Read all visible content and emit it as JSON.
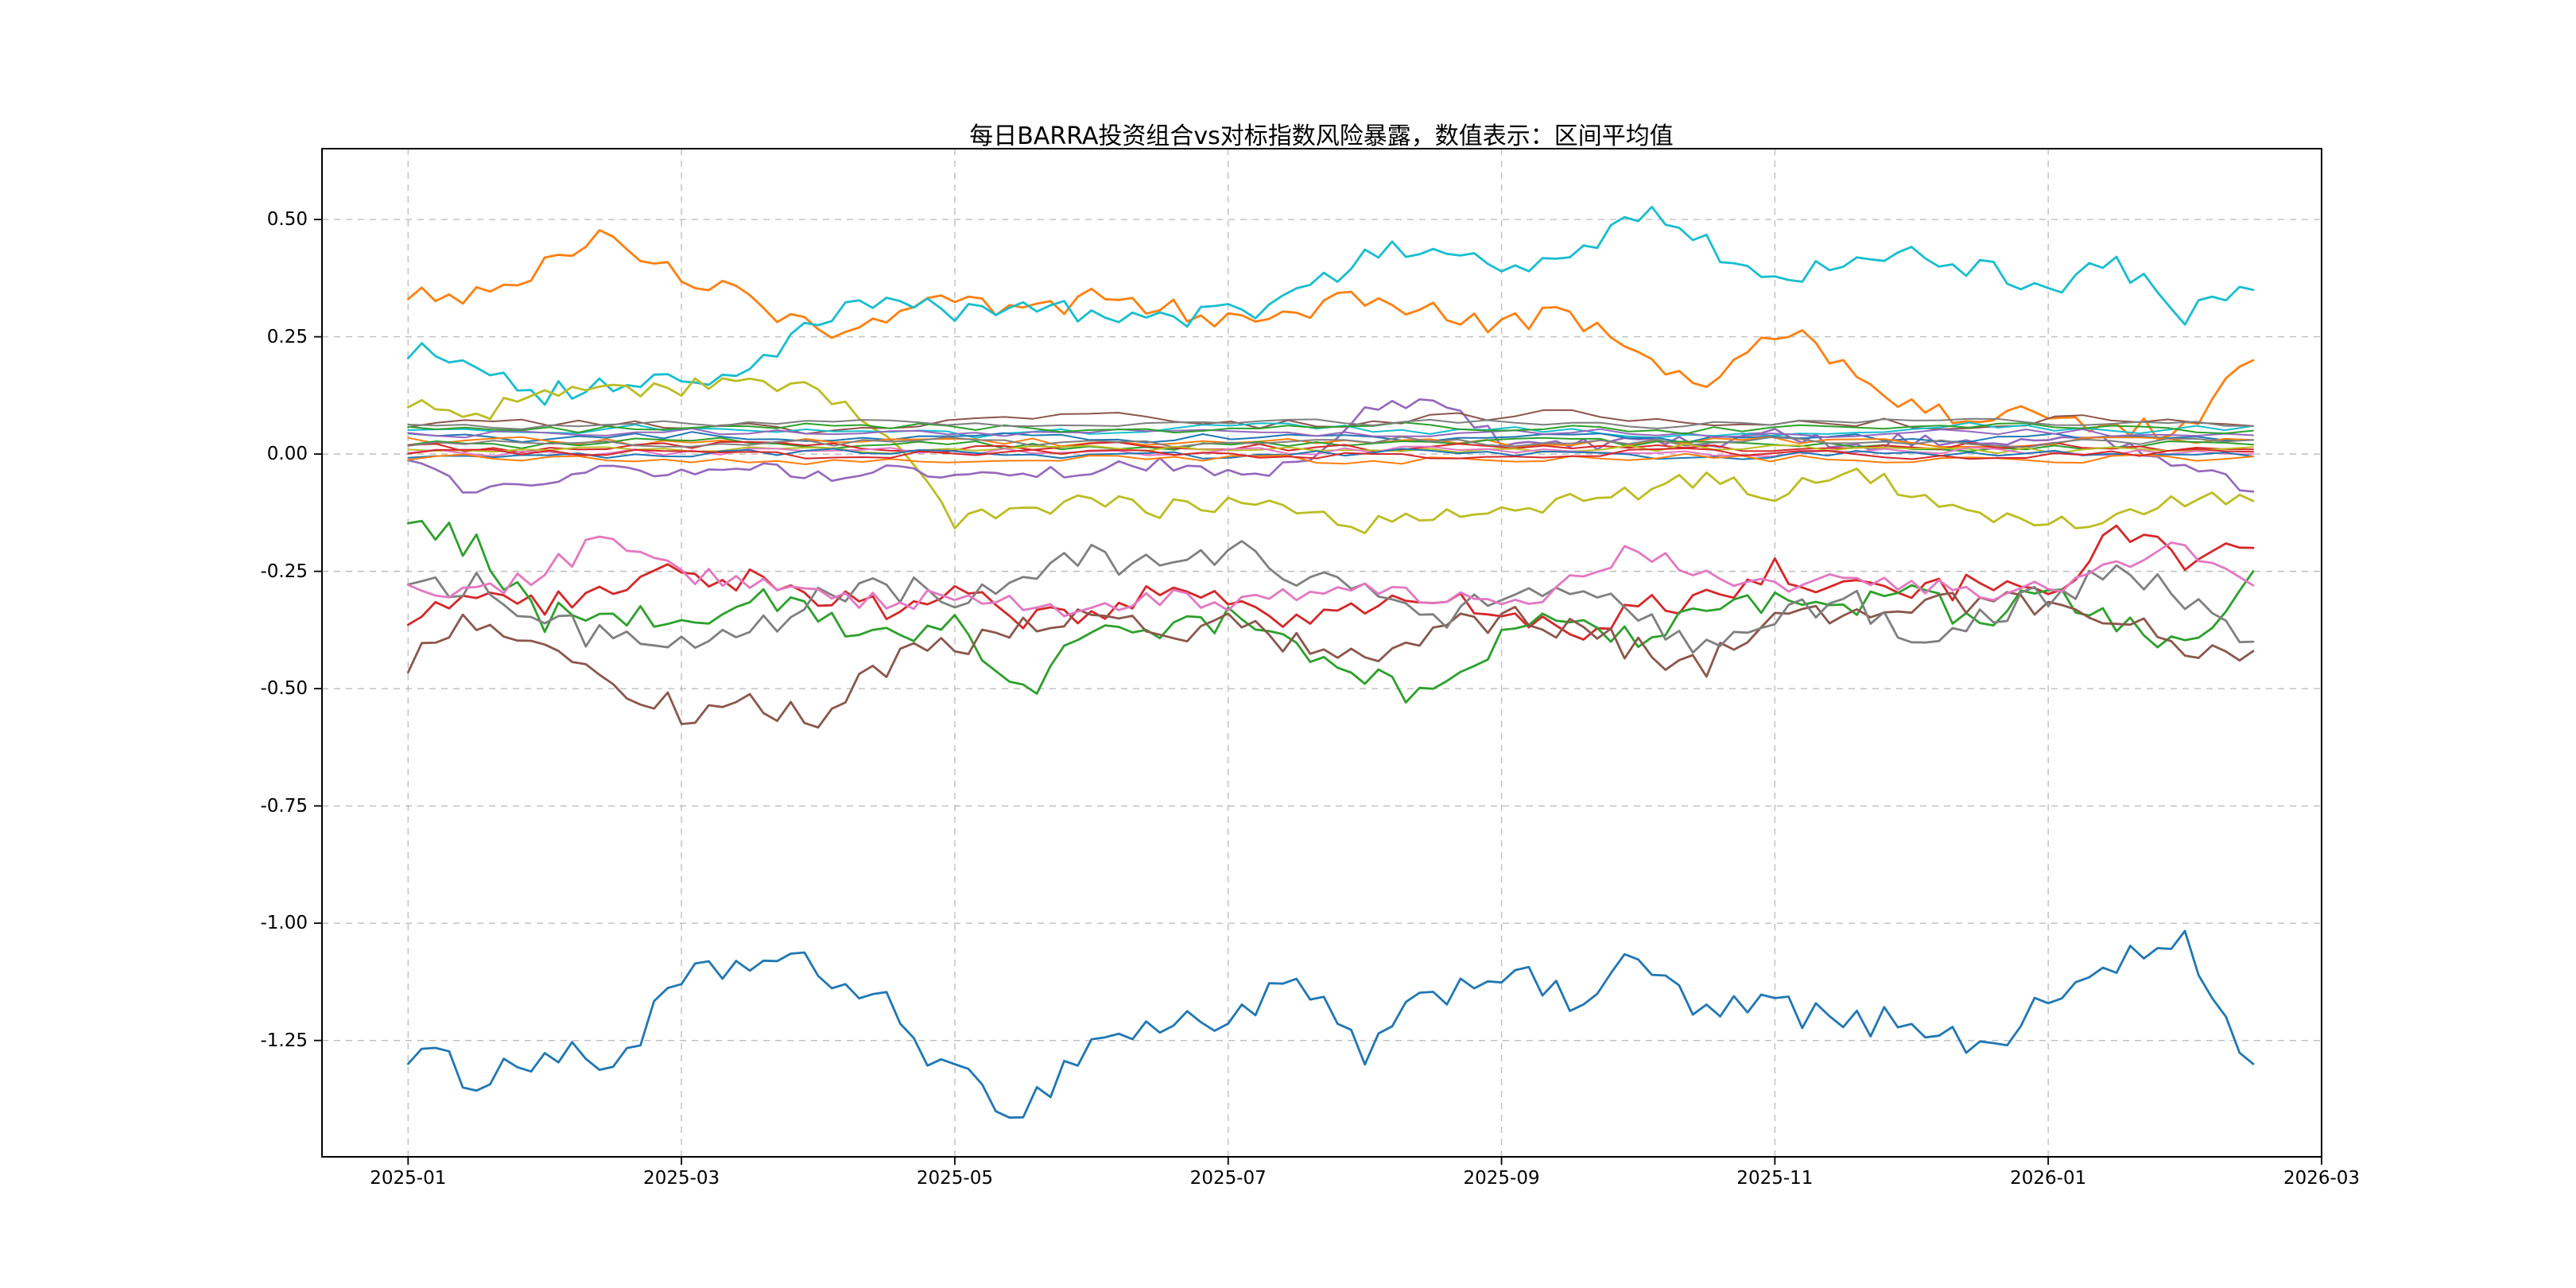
{
  "chart_data": {
    "type": "line",
    "title": "每日BARRA投资组合vs对标指数风险暴露，数值表示：区间平均值",
    "xlabel": "",
    "ylabel": "",
    "grid": "dashed",
    "legend": "none",
    "background": "#ffffff",
    "grid_color": "#bfbfbf",
    "spine_color": "#000000",
    "x_tick_labels": [
      "2025-01",
      "2025-03",
      "2025-05",
      "2025-07",
      "2025-09",
      "2025-11",
      "2026-01",
      "2026-03"
    ],
    "x_tick_months": [
      0,
      2,
      4,
      6,
      8,
      10,
      12,
      14
    ],
    "y_tick_labels": [
      "0.50",
      "0.25",
      "0.00",
      "-0.25",
      "-0.50",
      "-0.75",
      "-1.00",
      "-1.25"
    ],
    "y_ticks": [
      0.5,
      0.25,
      0.0,
      -0.25,
      -0.5,
      -0.75,
      -1.0,
      -1.25
    ],
    "x_range_months": [
      -0.63,
      14.0
    ],
    "y_range": [
      -1.498,
      0.651
    ],
    "x_data_span": [
      0,
      13.5
    ],
    "series": [
      {
        "name": "series_01",
        "color": "#1f77b4",
        "noise": 0.035,
        "width": 2.8,
        "values": [
          -1.27,
          -1.33,
          -1.28,
          -1.3,
          -1.13,
          -1.08,
          -1.1,
          -1.18,
          -1.33,
          -1.4,
          -1.25,
          -1.22,
          -1.2,
          -1.13,
          -1.28,
          -1.15,
          -1.1,
          -1.17,
          -1.08,
          -1.2,
          -1.17,
          -1.22,
          -1.2,
          -1.27,
          -1.17,
          -1.08,
          -1.05,
          -1.3
        ]
      },
      {
        "name": "series_02",
        "color": "#ff7f0e",
        "noise": 0.025,
        "width": 2.8,
        "values": [
          0.35,
          0.34,
          0.4,
          0.47,
          0.38,
          0.33,
          0.26,
          0.3,
          0.32,
          0.3,
          0.33,
          0.31,
          0.29,
          0.31,
          0.33,
          0.3,
          0.27,
          0.3,
          0.22,
          0.13,
          0.27,
          0.2,
          0.1,
          0.08,
          0.08,
          0.05,
          0.06,
          0.2
        ]
      },
      {
        "name": "series_03",
        "color": "#17becf",
        "noise": 0.025,
        "width": 2.8,
        "values": [
          0.22,
          0.2,
          0.13,
          0.15,
          0.15,
          0.18,
          0.28,
          0.33,
          0.3,
          0.33,
          0.3,
          0.28,
          0.3,
          0.33,
          0.42,
          0.45,
          0.38,
          0.42,
          0.52,
          0.45,
          0.37,
          0.42,
          0.42,
          0.4,
          0.36,
          0.4,
          0.3,
          0.35
        ]
      },
      {
        "name": "series_04",
        "color": "#bcbd22",
        "noise": 0.02,
        "width": 2.8,
        "values": [
          0.1,
          0.08,
          0.13,
          0.14,
          0.14,
          0.15,
          0.13,
          0.05,
          -0.15,
          -0.12,
          -0.1,
          -0.12,
          -0.1,
          -0.12,
          -0.15,
          -0.13,
          -0.12,
          -0.1,
          -0.08,
          -0.05,
          -0.08,
          -0.03,
          -0.08,
          -0.12,
          -0.15,
          -0.13,
          -0.1,
          -0.1
        ]
      },
      {
        "name": "series_05",
        "color": "#9467bd",
        "noise": 0.015,
        "width": 2.6,
        "values": [
          -0.02,
          -0.08,
          -0.05,
          -0.03,
          -0.04,
          -0.02,
          -0.05,
          -0.03,
          -0.04,
          -0.05,
          -0.03,
          -0.02,
          -0.04,
          -0.03,
          0.1,
          0.12,
          0.03,
          0.02,
          0.03,
          0.02,
          0.04,
          0.02,
          0.03,
          0.02,
          0.03,
          0.02,
          -0.02,
          -0.08
        ]
      },
      {
        "name": "series_06",
        "color": "#d62728",
        "noise": 0.028,
        "width": 2.8,
        "values": [
          -0.34,
          -0.3,
          -0.33,
          -0.28,
          -0.25,
          -0.27,
          -0.3,
          -0.33,
          -0.3,
          -0.35,
          -0.33,
          -0.3,
          -0.32,
          -0.35,
          -0.33,
          -0.3,
          -0.35,
          -0.38,
          -0.33,
          -0.3,
          -0.25,
          -0.28,
          -0.3,
          -0.28,
          -0.3,
          -0.15,
          -0.22,
          -0.2
        ]
      },
      {
        "name": "series_07",
        "color": "#2ca02c",
        "noise": 0.032,
        "width": 2.8,
        "values": [
          -0.13,
          -0.2,
          -0.35,
          -0.33,
          -0.35,
          -0.3,
          -0.35,
          -0.38,
          -0.35,
          -0.5,
          -0.4,
          -0.38,
          -0.35,
          -0.4,
          -0.48,
          -0.53,
          -0.4,
          -0.35,
          -0.38,
          -0.35,
          -0.3,
          -0.33,
          -0.3,
          -0.35,
          -0.3,
          -0.35,
          -0.42,
          -0.25
        ]
      },
      {
        "name": "series_08",
        "color": "#8c564b",
        "noise": 0.032,
        "width": 2.8,
        "values": [
          -0.45,
          -0.35,
          -0.4,
          -0.5,
          -0.55,
          -0.53,
          -0.57,
          -0.45,
          -0.4,
          -0.38,
          -0.35,
          -0.38,
          -0.35,
          -0.4,
          -0.45,
          -0.38,
          -0.35,
          -0.38,
          -0.42,
          -0.45,
          -0.35,
          -0.33,
          -0.35,
          -0.3,
          -0.33,
          -0.35,
          -0.4,
          -0.42
        ]
      },
      {
        "name": "series_09",
        "color": "#7f7f7f",
        "noise": 0.032,
        "width": 2.8,
        "values": [
          -0.27,
          -0.28,
          -0.35,
          -0.4,
          -0.42,
          -0.38,
          -0.3,
          -0.28,
          -0.3,
          -0.25,
          -0.22,
          -0.25,
          -0.2,
          -0.25,
          -0.3,
          -0.35,
          -0.3,
          -0.28,
          -0.35,
          -0.42,
          -0.35,
          -0.3,
          -0.38,
          -0.35,
          -0.3,
          -0.25,
          -0.3,
          -0.4
        ]
      },
      {
        "name": "series_10",
        "color": "#e377c2",
        "noise": 0.022,
        "width": 2.8,
        "values": [
          -0.28,
          -0.3,
          -0.25,
          -0.17,
          -0.25,
          -0.28,
          -0.3,
          -0.32,
          -0.3,
          -0.32,
          -0.33,
          -0.3,
          -0.32,
          -0.3,
          -0.28,
          -0.3,
          -0.32,
          -0.28,
          -0.2,
          -0.25,
          -0.28,
          -0.25,
          -0.28,
          -0.3,
          -0.28,
          -0.25,
          -0.2,
          -0.28
        ]
      },
      {
        "name": "series_11",
        "color": "#8c564b",
        "noise": 0.01,
        "width": 2.0,
        "values": [
          0.06,
          0.07,
          0.06,
          0.05,
          0.07,
          0.08,
          0.06,
          0.07,
          0.09,
          0.06,
          0.07,
          0.06,
          0.08,
          0.06
        ]
      },
      {
        "name": "series_12",
        "color": "#17becf",
        "noise": 0.008,
        "width": 2.0,
        "values": [
          0.05,
          0.05,
          0.06,
          0.05,
          0.04,
          0.05,
          0.06,
          0.05,
          0.05,
          0.04,
          0.05,
          0.06,
          0.05,
          0.06
        ]
      },
      {
        "name": "series_13",
        "color": "#1f77b4",
        "noise": 0.008,
        "width": 2.0,
        "values": [
          0.04,
          0.03,
          0.04,
          0.03,
          0.04,
          0.03,
          0.04,
          0.03,
          0.04,
          0.03,
          0.04,
          0.03,
          0.04,
          0.03
        ]
      },
      {
        "name": "series_14",
        "color": "#ff7f0e",
        "noise": 0.008,
        "width": 2.0,
        "values": [
          0.03,
          0.03,
          0.02,
          0.03,
          0.03,
          0.02,
          0.03,
          0.03,
          0.02,
          0.03,
          0.03,
          0.02,
          0.03,
          0.03
        ]
      },
      {
        "name": "series_15",
        "color": "#2ca02c",
        "noise": 0.008,
        "width": 2.0,
        "values": [
          0.02,
          0.02,
          0.03,
          0.02,
          0.02,
          0.01,
          0.02,
          0.02,
          0.03,
          0.02,
          0.02,
          0.01,
          0.02,
          0.02
        ]
      },
      {
        "name": "series_16",
        "color": "#d62728",
        "noise": 0.008,
        "width": 2.0,
        "values": [
          0.015,
          0.01,
          0.02,
          0.015,
          0.01,
          0.02,
          0.015,
          0.01,
          0.02,
          0.015,
          0.01,
          0.02,
          0.015,
          0.01
        ]
      },
      {
        "name": "series_17",
        "color": "#9467bd",
        "noise": 0.008,
        "width": 2.0,
        "values": [
          0.045,
          0.04,
          0.05,
          0.045,
          0.04,
          0.05,
          0.045,
          0.04,
          0.05,
          0.045,
          0.04,
          0.05,
          0.045,
          0.04
        ]
      },
      {
        "name": "series_18",
        "color": "#7f7f7f",
        "noise": 0.008,
        "width": 2.0,
        "values": [
          0.025,
          0.03,
          0.02,
          0.025,
          0.03,
          0.02,
          0.025,
          0.03,
          0.02,
          0.025,
          0.03,
          0.02,
          0.025,
          0.03
        ]
      },
      {
        "name": "series_19",
        "color": "#bcbd22",
        "noise": 0.008,
        "width": 2.0,
        "values": [
          0.01,
          0.015,
          0.01,
          0.005,
          0.01,
          0.015,
          0.01,
          0.005,
          0.01,
          0.015,
          0.01,
          0.005,
          0.01,
          0.015
        ]
      },
      {
        "name": "series_20",
        "color": "#e377c2",
        "noise": 0.008,
        "width": 2.0,
        "values": [
          0.005,
          0.0,
          0.005,
          0.01,
          0.005,
          0.0,
          0.005,
          0.01,
          0.005,
          0.0,
          0.005,
          0.01,
          0.005,
          0.0
        ]
      },
      {
        "name": "series_21",
        "color": "#1f77b4",
        "noise": 0.008,
        "width": 2.0,
        "values": [
          0.0,
          -0.005,
          0.0,
          0.005,
          0.0,
          -0.005,
          0.0,
          0.005,
          0.0,
          -0.005,
          0.0,
          0.005,
          0.0,
          -0.005
        ]
      },
      {
        "name": "series_22",
        "color": "#ff7f0e",
        "noise": 0.008,
        "width": 2.0,
        "values": [
          -0.01,
          -0.005,
          -0.01,
          -0.015,
          -0.01,
          -0.005,
          -0.01,
          -0.015,
          -0.01,
          -0.005,
          -0.01,
          -0.015,
          -0.01,
          -0.005
        ]
      },
      {
        "name": "series_23",
        "color": "#2ca02c",
        "noise": 0.008,
        "width": 2.0,
        "values": [
          0.055,
          0.05,
          0.055,
          0.06,
          0.055,
          0.05,
          0.055,
          0.06,
          0.055,
          0.05,
          0.055,
          0.06,
          0.055,
          0.05
        ]
      },
      {
        "name": "series_24",
        "color": "#d62728",
        "noise": 0.008,
        "width": 2.0,
        "values": [
          0.0,
          0.005,
          0.0,
          -0.005,
          0.0,
          0.005,
          0.0,
          -0.005,
          0.0,
          0.005,
          0.0,
          -0.005,
          0.0,
          0.005
        ]
      },
      {
        "name": "series_25",
        "color": "#7f7f7f",
        "noise": 0.008,
        "width": 2.0,
        "values": [
          0.065,
          0.06,
          0.065,
          0.07,
          0.065,
          0.06,
          0.065,
          0.07,
          0.065,
          0.06,
          0.065,
          0.07,
          0.065,
          0.06
        ]
      }
    ]
  }
}
